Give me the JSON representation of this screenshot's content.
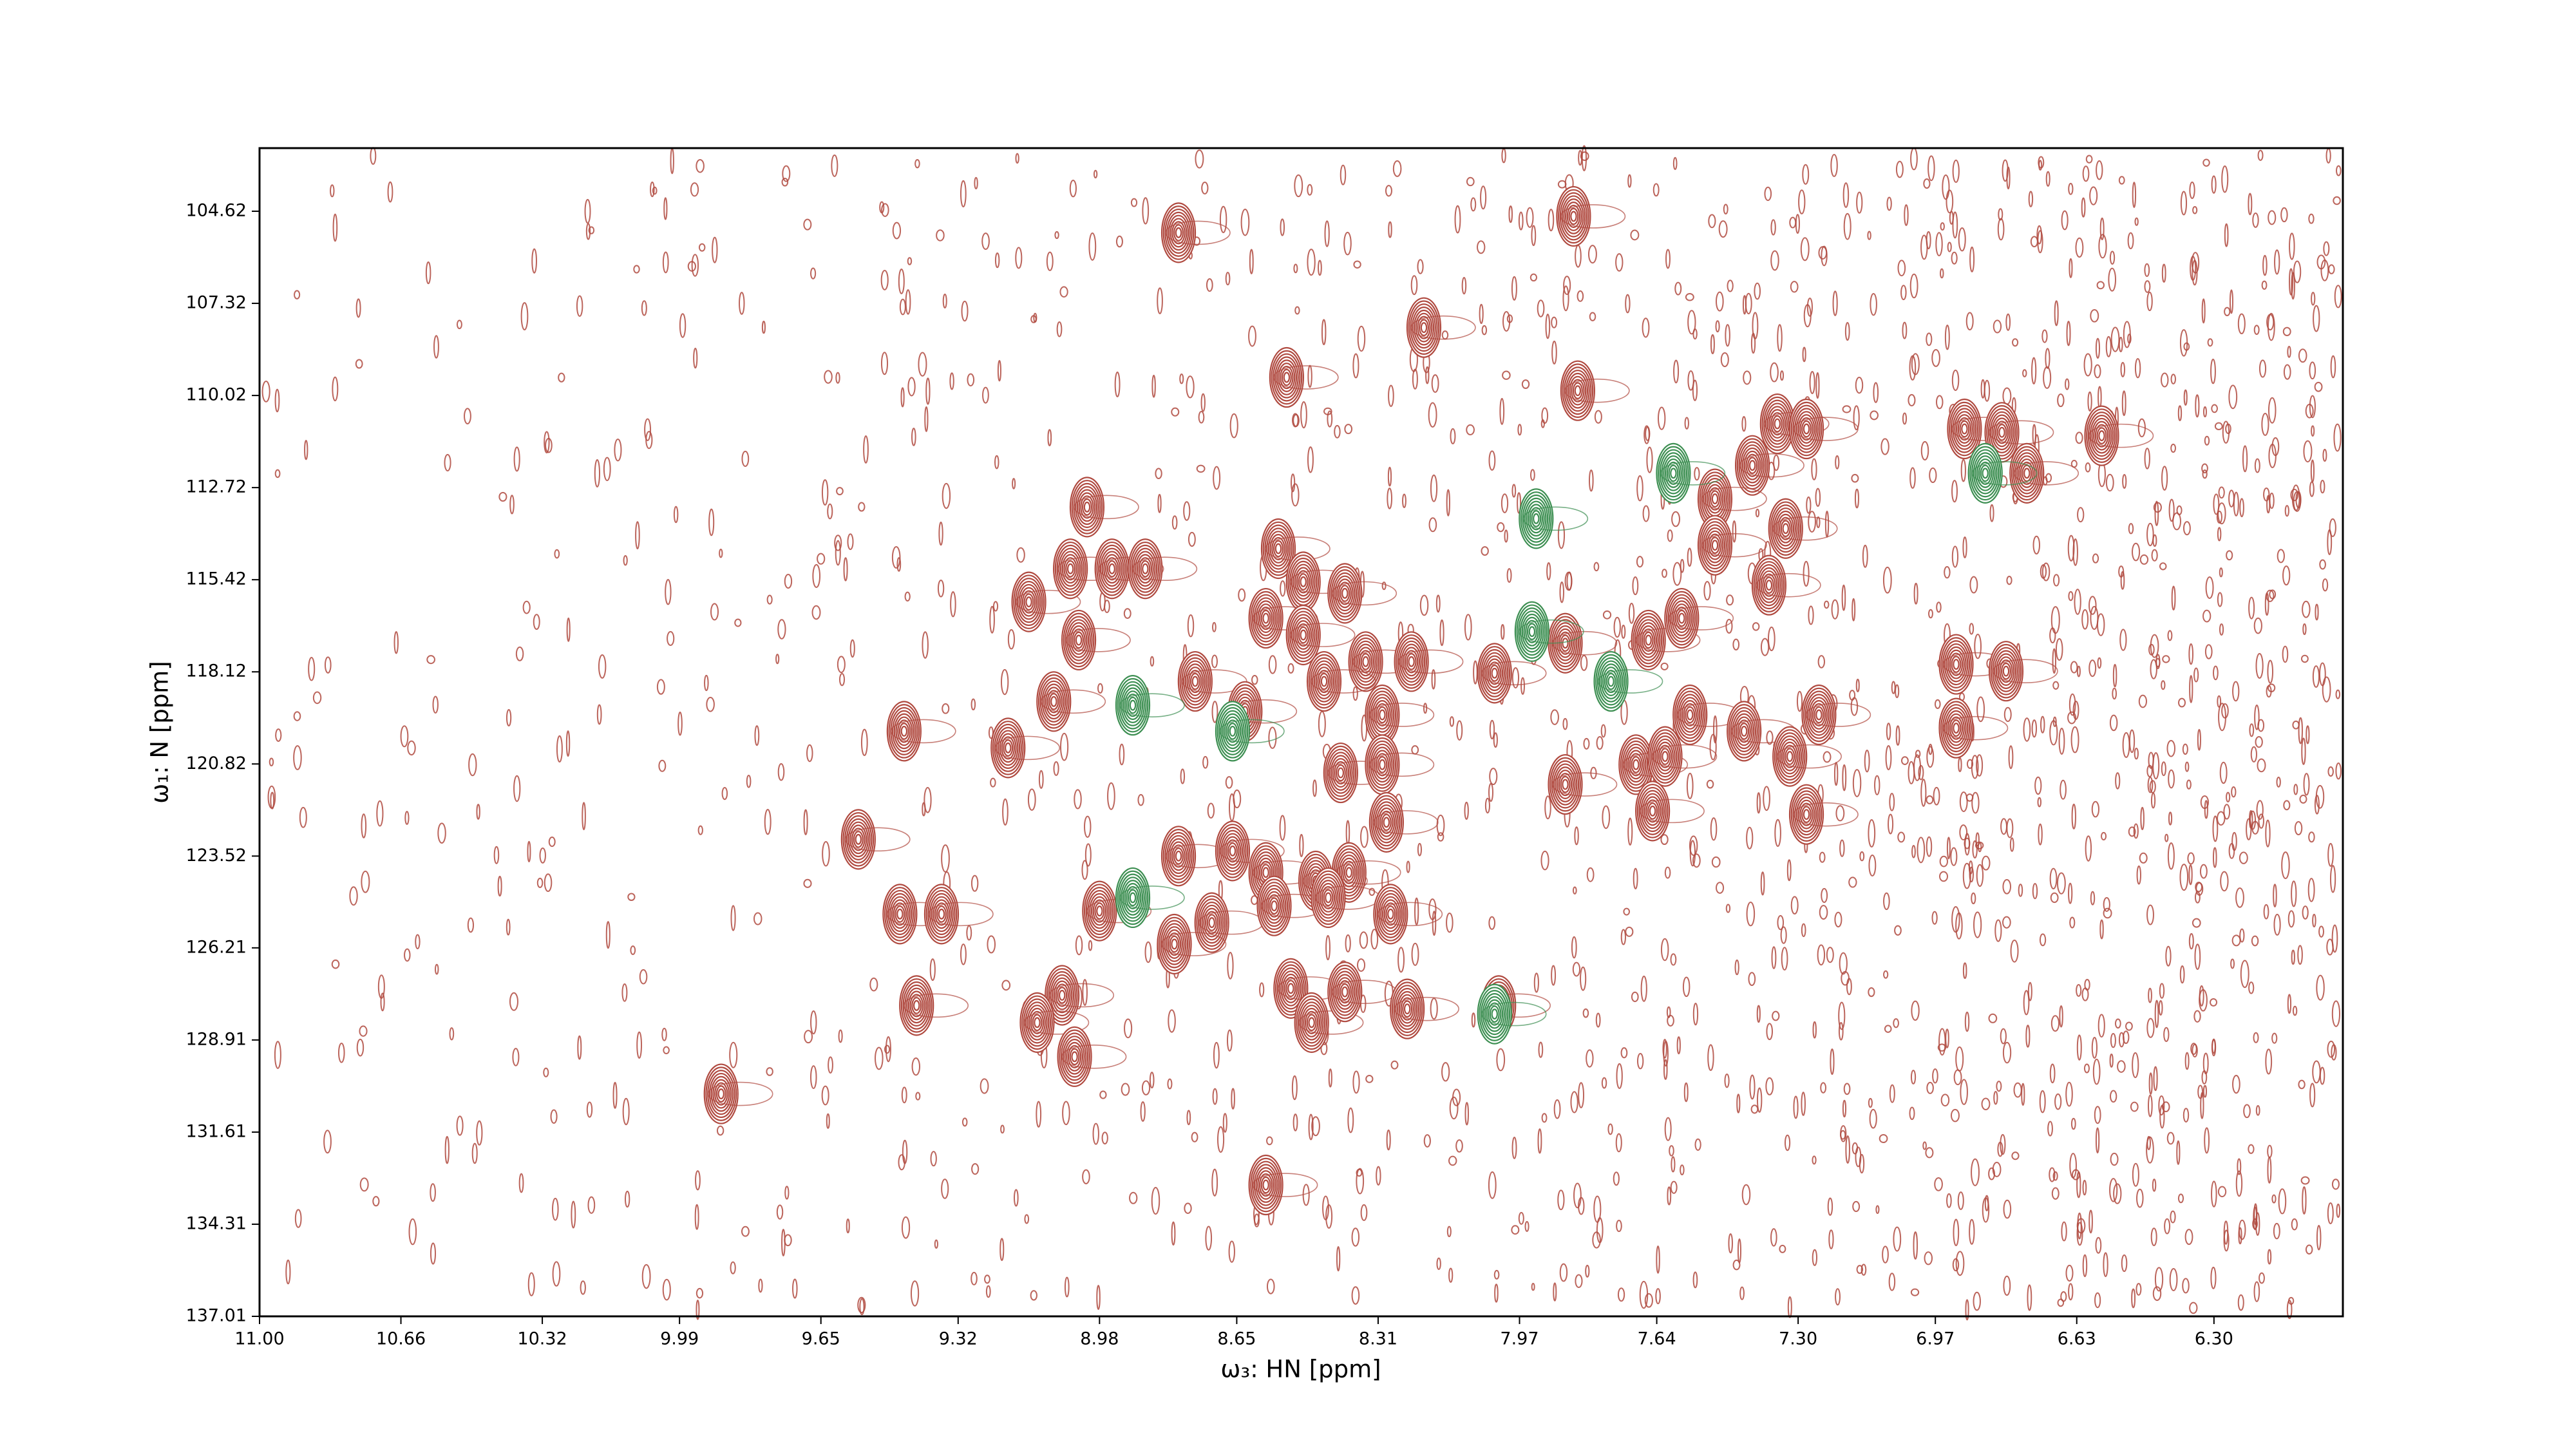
{
  "chart_data": {
    "type": "contour",
    "xlabel": "ω₃: HN [ppm]",
    "ylabel": "ω₁: N [ppm]",
    "xlim": [
      11.0,
      5.99
    ],
    "ylim": [
      137.01,
      102.77
    ],
    "xticks": [
      {
        "value": 11.0,
        "label": "11.00"
      },
      10.66,
      10.32,
      9.99,
      9.65,
      9.32,
      8.98,
      8.65,
      8.31,
      7.97,
      7.64,
      {
        "value": 7.3,
        "label": "7.30"
      },
      6.97,
      6.63,
      {
        "value": 6.3,
        "label": "6.30"
      }
    ],
    "yticks": [
      104.62,
      107.32,
      110.02,
      112.72,
      115.42,
      118.12,
      120.82,
      123.52,
      126.21,
      128.91,
      131.61,
      134.31,
      137.01
    ],
    "series": [
      {
        "color": "#b04a40",
        "x": [
          8.79,
          7.84,
          8.2,
          8.53,
          7.83,
          7.35,
          7.28,
          7.41,
          6.9,
          6.81,
          6.75,
          6.57,
          7.5,
          7.5,
          7.33,
          7.37,
          9.01,
          9.15,
          9.05,
          8.95,
          8.87,
          9.03,
          8.55,
          8.49,
          8.39,
          8.58,
          8.49,
          8.34,
          8.23,
          8.44,
          8.03,
          7.86,
          7.66,
          7.58,
          9.09,
          8.75,
          8.63,
          8.3,
          7.56,
          7.43,
          7.25,
          6.92,
          9.45,
          9.2,
          8.4,
          8.3,
          7.86,
          7.69,
          7.62,
          7.32,
          7.65,
          7.28,
          8.29,
          9.56,
          8.79,
          8.66,
          8.58,
          8.46,
          8.38,
          9.46,
          9.36,
          8.98,
          8.71,
          8.56,
          8.43,
          8.28,
          8.8,
          9.42,
          9.07,
          9.13,
          9.04,
          8.52,
          8.47,
          8.39,
          8.24,
          8.02,
          9.89,
          8.58,
          6.92,
          6.8
        ],
        "y": [
          105.25,
          104.77,
          108.03,
          109.49,
          109.88,
          110.85,
          111.0,
          112.07,
          111.0,
          111.1,
          112.3,
          111.2,
          113.05,
          114.41,
          113.92,
          115.58,
          113.29,
          116.07,
          115.1,
          115.1,
          115.1,
          117.19,
          114.51,
          115.48,
          115.82,
          116.55,
          117.04,
          117.82,
          117.82,
          118.4,
          118.16,
          117.28,
          117.19,
          116.55,
          118.99,
          118.4,
          119.28,
          119.38,
          119.38,
          119.86,
          119.38,
          119.77,
          119.86,
          120.35,
          121.08,
          120.84,
          121.42,
          120.84,
          120.6,
          120.6,
          122.2,
          122.3,
          122.53,
          123.03,
          123.52,
          123.37,
          124.0,
          124.25,
          124.0,
          125.22,
          125.22,
          125.13,
          125.47,
          124.98,
          124.74,
          125.22,
          126.1,
          127.9,
          127.6,
          128.4,
          129.4,
          127.4,
          128.4,
          127.5,
          128.0,
          127.9,
          130.49,
          133.16,
          117.9,
          118.1
        ]
      },
      {
        "color": "#3d8f52",
        "x": [
          7.93,
          8.9,
          8.9,
          8.66,
          7.94,
          7.75,
          7.6,
          6.85,
          8.03
        ],
        "y": [
          113.63,
          119.1,
          124.74,
          119.86,
          116.94,
          118.4,
          112.3,
          112.3,
          128.15
        ]
      }
    ]
  }
}
